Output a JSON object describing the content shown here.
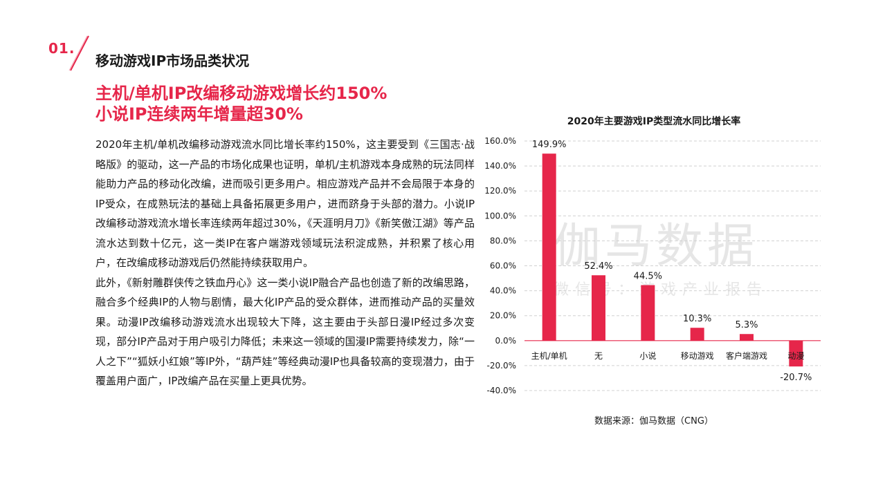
{
  "section": {
    "number": "01.",
    "title": "移动游戏IP市场品类状况"
  },
  "headline": {
    "line1": "主机/单机IP改编移动游戏增长约150%",
    "line2": "小说IP连续两年增量超30%"
  },
  "body": {
    "paragraph1": "2020年主机/单机改编移动游戏流水同比增长率约150%，这主要受到《三国志·战略版》的驱动，这一产品的市场化成果也证明，单机/主机游戏本身成熟的玩法同样能助力产品的移动化改编，进而吸引更多用户。相应游戏产品并不会局限于本身的IP受众，在成熟玩法的基础上具备拓展更多用户，进而跻身于头部的潜力。小说IP改编移动游戏流水增长率连续两年超过30%，《天涯明月刀》《新笑傲江湖》等产品流水达到数十亿元，这一类IP在客户端游戏领域玩法积淀成熟，并积累了核心用户，在改编成移动游戏后仍然能持续获取用户。",
    "paragraph2": "此外，《新射雕群侠传之铁血丹心》这一类小说IP融合产品也创造了新的改编思路，融合多个经典IP的人物与剧情，最大化IP产品的受众群体，进而推动产品的买量效果。动漫IP改编移动游戏流水出现较大下降，这主要由于头部日漫IP经过多次变现，部分IP产品对于用户吸引力降低；未来这一领域的国漫IP需要持续发力，除“一人之下”“狐妖小红娘”等IP外，“葫芦娃”等经典动漫IP也具备较高的变现潜力，由于覆盖用户面广，IP改编产品在买量上更具优势。"
  },
  "watermark": {
    "main": "伽马数据",
    "sub": "微信号：游戏产业报告"
  },
  "chart_data": {
    "type": "bar",
    "title": "2020年主要游戏IP类型流水同比增长率",
    "categories": [
      "主机/单机",
      "无",
      "小说",
      "移动游戏",
      "客户端游戏",
      "动漫"
    ],
    "values": [
      149.9,
      52.4,
      44.5,
      10.3,
      5.3,
      -20.7
    ],
    "value_labels": [
      "149.9%",
      "52.4%",
      "44.5%",
      "10.3%",
      "5.3%",
      "-20.7%"
    ],
    "ylim": [
      -40,
      160
    ],
    "yticks": [
      160,
      140,
      120,
      100,
      80,
      60,
      40,
      20,
      0,
      -20,
      -40
    ],
    "ytick_labels": [
      "160.0%",
      "140.0%",
      "120.0%",
      "100.0%",
      "80.0%",
      "60.0%",
      "40.0%",
      "20.0%",
      "0.0%",
      "-20.0%",
      "-40.0%"
    ],
    "grid": true,
    "xlabel": "",
    "ylabel": "",
    "bar_color": "#e6264a",
    "source": "数据来源：伽马数据（CNG）"
  }
}
